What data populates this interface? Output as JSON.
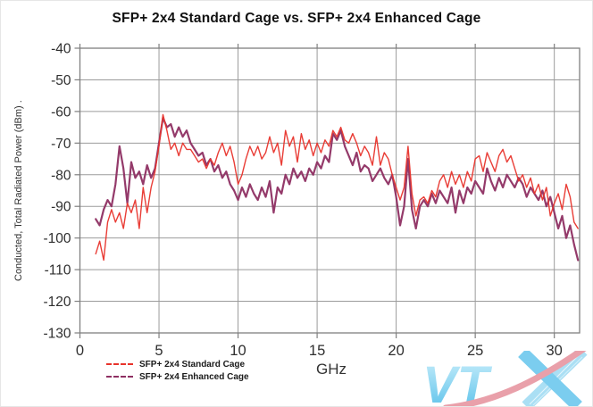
{
  "page": {
    "title": "SFP+ 2x4 Standard Cage vs. SFP+ 2x4 Enhanced Cage"
  },
  "axis": {
    "y_label": "Conducted, Total Radiated Power (dBm) .",
    "x_label": "GHz"
  },
  "legend": {
    "items": [
      {
        "label": "SFP+ 2x4 Standard Cage"
      },
      {
        "label": "SFP+ 2x4 Enhanced Cage"
      }
    ]
  },
  "watermark": {
    "name": "VTX logo",
    "letters": "VT"
  },
  "chart_data": {
    "type": "line",
    "title": "SFP+ 2x4 Standard Cage vs. SFP+ 2x4 Enhanced Cage",
    "xlabel": "GHz",
    "ylabel": "Conducted, Total Radiated Power (dBm) .",
    "xlim": [
      0,
      31.6
    ],
    "ylim": [
      -130,
      -40
    ],
    "x_ticks": [
      0,
      5,
      10,
      15,
      20,
      25,
      30
    ],
    "y_ticks": [
      -40,
      -50,
      -60,
      -70,
      -80,
      -90,
      -100,
      -110,
      -120,
      -130
    ],
    "grid": true,
    "legend_position": "bottom-left",
    "x_start": 1.0,
    "x_step": 0.25,
    "colors": {
      "grid": "#9b9b9b",
      "frame": "#7f7f7f",
      "tick_text": "#2f2f2f"
    },
    "series": [
      {
        "name": "SFP+ 2x4 Standard Cage",
        "color": "#e8332b",
        "stroke_width": 1.4,
        "values": [
          -105,
          -101,
          -107,
          -95,
          -91,
          -95,
          -92,
          -97,
          -89,
          -92,
          -88,
          -97,
          -84,
          -92,
          -84,
          -79,
          -71,
          -61,
          -66,
          -72,
          -70,
          -74,
          -70,
          -72,
          -72,
          -74,
          -76,
          -75,
          -78,
          -75,
          -77,
          -73,
          -70,
          -74,
          -71,
          -76,
          -83,
          -80,
          -75,
          -71,
          -74,
          -71,
          -75,
          -73,
          -68,
          -73,
          -70,
          -77,
          -66,
          -71,
          -68,
          -76,
          -67,
          -72,
          -69,
          -74,
          -70,
          -73,
          -69,
          -71,
          -66,
          -68,
          -65,
          -69,
          -70,
          -67,
          -70,
          -74,
          -71,
          -73,
          -77,
          -68,
          -77,
          -73,
          -75,
          -80,
          -84,
          -88,
          -84,
          -71,
          -86,
          -93,
          -88,
          -87,
          -89,
          -85,
          -87,
          -82,
          -80,
          -84,
          -79,
          -83,
          -80,
          -84,
          -79,
          -82,
          -75,
          -74,
          -79,
          -73,
          -76,
          -79,
          -74,
          -72,
          -76,
          -74,
          -78,
          -82,
          -80,
          -84,
          -81,
          -86,
          -83,
          -88,
          -84,
          -93,
          -89,
          -86,
          -91,
          -83,
          -87,
          -95,
          -97
        ]
      },
      {
        "name": "SFP+ 2x4 Enhanced Cage",
        "color": "#8e2f62",
        "stroke_width": 2.2,
        "values": [
          -94,
          -96,
          -91,
          -88,
          -90,
          -83,
          -71,
          -78,
          -89,
          -76,
          -81,
          -79,
          -83,
          -77,
          -81,
          -78,
          -70,
          -62,
          -65,
          -64,
          -68,
          -65,
          -68,
          -66,
          -70,
          -72,
          -74,
          -73,
          -77,
          -75,
          -79,
          -77,
          -81,
          -79,
          -83,
          -85,
          -88,
          -84,
          -87,
          -83,
          -86,
          -88,
          -84,
          -87,
          -82,
          -92,
          -84,
          -86,
          -80,
          -83,
          -78,
          -81,
          -79,
          -82,
          -78,
          -80,
          -76,
          -78,
          -74,
          -76,
          -67,
          -69,
          -66,
          -71,
          -74,
          -77,
          -73,
          -79,
          -77,
          -78,
          -82,
          -80,
          -78,
          -81,
          -83,
          -80,
          -87,
          -96,
          -90,
          -75,
          -91,
          -97,
          -90,
          -88,
          -90,
          -86,
          -89,
          -85,
          -87,
          -89,
          -84,
          -92,
          -85,
          -89,
          -84,
          -86,
          -82,
          -84,
          -86,
          -78,
          -82,
          -85,
          -81,
          -84,
          -80,
          -82,
          -84,
          -81,
          -83,
          -87,
          -84,
          -86,
          -88,
          -85,
          -90,
          -87,
          -92,
          -97,
          -93,
          -100,
          -96,
          -102,
          -107
        ]
      }
    ]
  }
}
